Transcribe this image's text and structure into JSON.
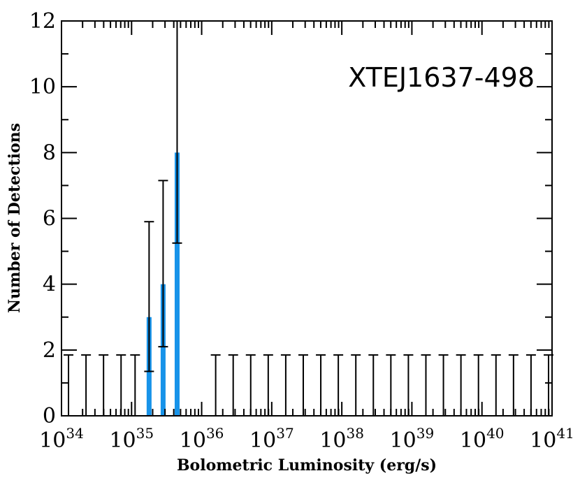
{
  "chart_data": {
    "type": "bar",
    "title": "",
    "annotation": "XTEJ1637-498",
    "xlabel": "Bolometric Luminosity (erg/s)",
    "ylabel": "Number of Detections",
    "x_scale": "log",
    "xlim_exponent": [
      34,
      41
    ],
    "ylim": [
      0,
      12
    ],
    "x_tick_labels": [
      {
        "base": "10",
        "exp": "34"
      },
      {
        "base": "10",
        "exp": "35"
      },
      {
        "base": "10",
        "exp": "36"
      },
      {
        "base": "10",
        "exp": "37"
      },
      {
        "base": "10",
        "exp": "38"
      },
      {
        "base": "10",
        "exp": "39"
      },
      {
        "base": "10",
        "exp": "40"
      },
      {
        "base": "10",
        "exp": "41"
      }
    ],
    "y_tick_labels": [
      "0",
      "2",
      "4",
      "6",
      "8",
      "10",
      "12"
    ],
    "bin_width_dex": 0.1,
    "bars": [
      {
        "log_lo": 35.2,
        "log_hi": 35.3,
        "value": 3,
        "err_lo": 1.35,
        "err_hi": 5.9
      },
      {
        "log_lo": 35.4,
        "log_hi": 35.5,
        "value": 4,
        "err_lo": 2.1,
        "err_hi": 7.15
      },
      {
        "log_lo": 35.6,
        "log_hi": 35.7,
        "value": 8,
        "err_lo": 5.25,
        "err_hi": 12.0
      }
    ],
    "upper_limit_value": 1.85,
    "upper_limit_log_lum": [
      34.1,
      34.35,
      34.6,
      34.85,
      35.05,
      36.2,
      36.45,
      36.7,
      36.95,
      37.2,
      37.45,
      37.7,
      37.95,
      38.2,
      38.45,
      38.7,
      38.95,
      39.2,
      39.45,
      39.7,
      39.95,
      40.2,
      40.45,
      40.7,
      40.95
    ],
    "bar_color": "#1793e9",
    "grid": false
  }
}
